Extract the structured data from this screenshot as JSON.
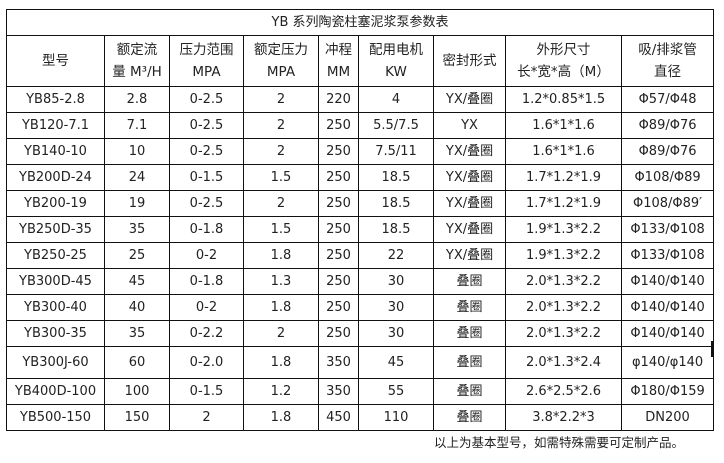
{
  "title": "YB 系列陶瓷柱塞泥浆泵参数表",
  "headers": [
    [
      "型号"
    ],
    [
      "额定流",
      "量 M³/H"
    ],
    [
      "压力范围",
      "MPA"
    ],
    [
      "额定压力",
      "MPA"
    ],
    [
      "冲程",
      "MM"
    ],
    [
      "配用电机",
      "KW"
    ],
    [
      "密封形式"
    ],
    [
      "外形尺寸",
      "长*宽*高（M）"
    ],
    [
      "吸/排浆管",
      "直径"
    ]
  ],
  "rows": [
    [
      "YB85-2.8",
      "2.8",
      "0-2.5",
      "2",
      "220",
      "4",
      "YX/叠圈",
      "1.2*0.85*1.5",
      "Φ57/Φ48"
    ],
    [
      "YB120-7.1",
      "7.1",
      "0-2.5",
      "2",
      "250",
      "5.5/7.5",
      "YX",
      "1.6*1*1.6",
      "Φ89/Φ76"
    ],
    [
      "YB140-10",
      "10",
      "0-2.5",
      "2",
      "250",
      "7.5/11",
      "YX/叠圈",
      "1.6*1*1.6",
      "Φ89/Φ76"
    ],
    [
      "YB200D-24",
      "24",
      "0-1.5",
      "1.5",
      "250",
      "18.5",
      "YX/叠圈",
      "1.7*1.2*1.9",
      "Φ108/Φ89"
    ],
    [
      "YB200-19",
      "19",
      "0-2.5",
      "2",
      "250",
      "18.5",
      "YX/叠圈",
      "1.7*1.2*1.9",
      "Φ108/Φ89′"
    ],
    [
      "YB250D-35",
      "35",
      "0-1.8",
      "1.5",
      "250",
      "18.5",
      "YX/叠圈",
      "1.9*1.3*2.2",
      "Φ133/Φ108"
    ],
    [
      "YB250-25",
      "25",
      "0-2",
      "1.8",
      "250",
      "22",
      "YX/叠圈",
      "1.9*1.3*2.2",
      "Φ133/Φ108"
    ],
    [
      "YB300D-45",
      "45",
      "0-1.8",
      "1.3",
      "250",
      "30",
      "叠圈",
      "2.0*1.3*2.2",
      "Φ140/Φ140"
    ],
    [
      "YB300-40",
      "40",
      "0-2",
      "1.8",
      "250",
      "30",
      "叠圈",
      "2.0*1.3*2.2",
      "Φ140/Φ140"
    ],
    [
      "YB300-35",
      "35",
      "0-2.2",
      "2",
      "250",
      "30",
      "叠圈",
      "2.0*1.3*2.2",
      "Φ140/Φ140"
    ],
    [
      "YB300J-60",
      "60",
      "0-2.0",
      "1.8",
      "350",
      "45",
      "叠圈",
      "2.0*1.3*2.4",
      "φ140/φ140"
    ],
    [
      "YB400D-100",
      "100",
      "0-1.5",
      "1.2",
      "350",
      "55",
      "叠圈",
      "2.6*2.5*2.6",
      "Φ180/Φ159"
    ],
    [
      "YB500-150",
      "150",
      "2",
      "1.8",
      "450",
      "110",
      "叠圈",
      "3.8*2.2*3",
      "DN200"
    ]
  ],
  "footer": "以上为基本型号，如需特殊需要可定制产品。"
}
